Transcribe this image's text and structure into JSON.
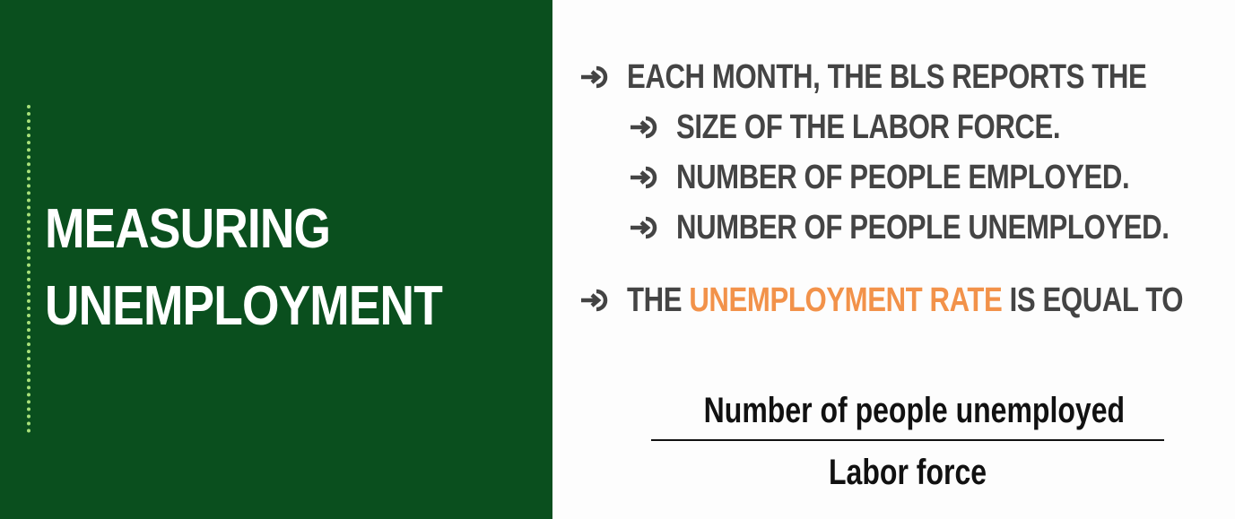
{
  "title": {
    "line1": "MEASURING",
    "line2": "UNEMPLOYMENT"
  },
  "bullets": {
    "main": "EACH MONTH, THE BLS REPORTS THE",
    "sub": [
      "SIZE OF THE LABOR FORCE.",
      "NUMBER OF PEOPLE EMPLOYED.",
      "NUMBER OF PEOPLE UNEMPLOYED."
    ],
    "rate_prefix": "THE",
    "rate_highlight": "UNEMPLOYMENT RATE",
    "rate_suffix": "IS EQUAL TO"
  },
  "formula": {
    "numerator": "Number of people unemployed",
    "denominator": "Labor force"
  },
  "colors": {
    "panel": "#0a4f1e",
    "accent": "#f2924a",
    "dots": "#a8e07a",
    "text": "#444444"
  },
  "icons": {
    "bullet": "circled-arrow-right-icon"
  }
}
